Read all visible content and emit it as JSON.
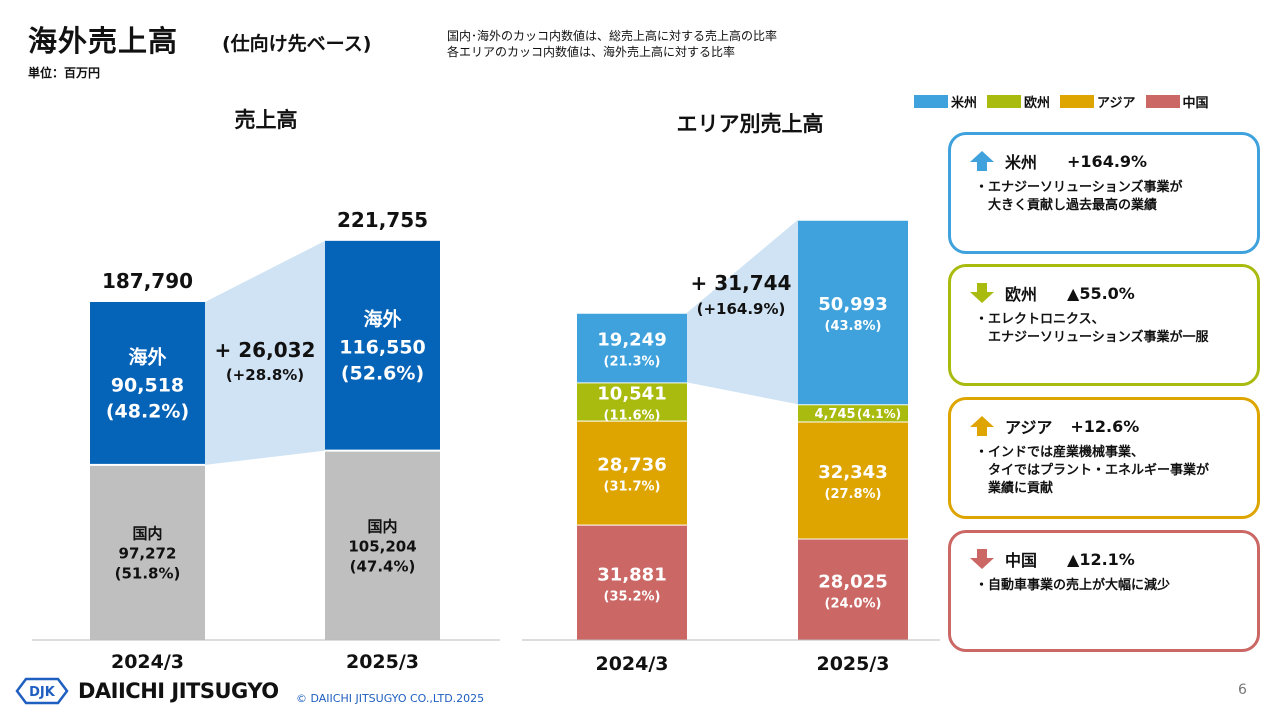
{
  "header": {
    "title": "海外売上高",
    "subtitle": "(仕向け先ベース)",
    "unit": "単位：百万円",
    "note1": "国内･海外のカッコ内数値は、総売上高に対する売上高の比率",
    "note2": "各エリアのカッコ内数値は、海外売上高に対する比率"
  },
  "colors": {
    "overseas": "#0563b8",
    "domestic": "#bfbfbf",
    "americas": "#3fa2dc",
    "europe": "#aabb10",
    "asia": "#dea500",
    "china": "#cb6866",
    "band": "#cfe3f4"
  },
  "chart_data": [
    {
      "type": "bar",
      "title": "売上高",
      "categories": [
        "2024/3",
        "2025/3"
      ],
      "series": [
        {
          "name": "国内",
          "values": [
            97272,
            105204
          ],
          "shares": [
            "(51.8%)",
            "(47.4%)"
          ]
        },
        {
          "name": "海外",
          "values": [
            90518,
            116550
          ],
          "shares": [
            "(48.2%)",
            "(52.6%)"
          ]
        }
      ],
      "totals": [
        187790,
        221755
      ],
      "value_labels": {
        "domestic": [
          "97,272",
          "105,204"
        ],
        "overseas": [
          "90,518",
          "116,550"
        ],
        "totals": [
          "187,790",
          "221,755"
        ]
      },
      "change": {
        "amount": "+ 26,032",
        "pct": "(+28.8%)"
      }
    },
    {
      "type": "bar",
      "title": "エリア別売上高",
      "categories": [
        "2024/3",
        "2025/3"
      ],
      "series": [
        {
          "name": "中国",
          "values": [
            31881,
            28025
          ],
          "labels": [
            "31,881",
            "28,025"
          ],
          "shares": [
            "(35.2%)",
            "(24.0%)"
          ]
        },
        {
          "name": "アジア",
          "values": [
            28736,
            32343
          ],
          "labels": [
            "28,736",
            "32,343"
          ],
          "shares": [
            "(31.7%)",
            "(27.8%)"
          ]
        },
        {
          "name": "欧州",
          "values": [
            10541,
            4745
          ],
          "labels": [
            "10,541",
            "4,745"
          ],
          "shares": [
            "(11.6%)",
            "(4.1%)"
          ]
        },
        {
          "name": "米州",
          "values": [
            19249,
            50993
          ],
          "labels": [
            "19,249",
            "50,993"
          ],
          "shares": [
            "(21.3%)",
            "(43.8%)"
          ]
        }
      ],
      "change": {
        "amount": "+ 31,744",
        "pct": "(+164.9%)"
      },
      "legend": {
        "position": "top-right",
        "entries": [
          "米州",
          "欧州",
          "アジア",
          "中国"
        ]
      }
    }
  ],
  "panels": [
    {
      "name": "米州",
      "change": "+164.9%",
      "trend": "up",
      "color": "#3fa2dc",
      "bullets": [
        "・エナジーソリューションズ事業が",
        "　大きく貢献し過去最高の業績"
      ]
    },
    {
      "name": "欧州",
      "change": "▲55.0%",
      "trend": "down",
      "color": "#aabb10",
      "bullets": [
        "・エレクトロニクス、",
        "　エナジーソリューションズ事業が一服"
      ]
    },
    {
      "name": "アジア",
      "change": "+12.6%",
      "trend": "up",
      "color": "#dea500",
      "bullets": [
        "・インドでは産業機械事業、",
        "　タイではプラント・エネルギー事業が",
        "　業績に貢献"
      ]
    },
    {
      "name": "中国",
      "change": "▲12.1%",
      "trend": "down",
      "color": "#cb6866",
      "bullets": [
        "・自動車事業の売上が大幅に減少"
      ]
    }
  ],
  "footer": {
    "logo_mark": "DJK",
    "logo_text": "DAIICHI JITSUGYO",
    "copyright": "© DAIICHI JITSUGYO CO.,LTD.2025",
    "page_number": "6"
  }
}
